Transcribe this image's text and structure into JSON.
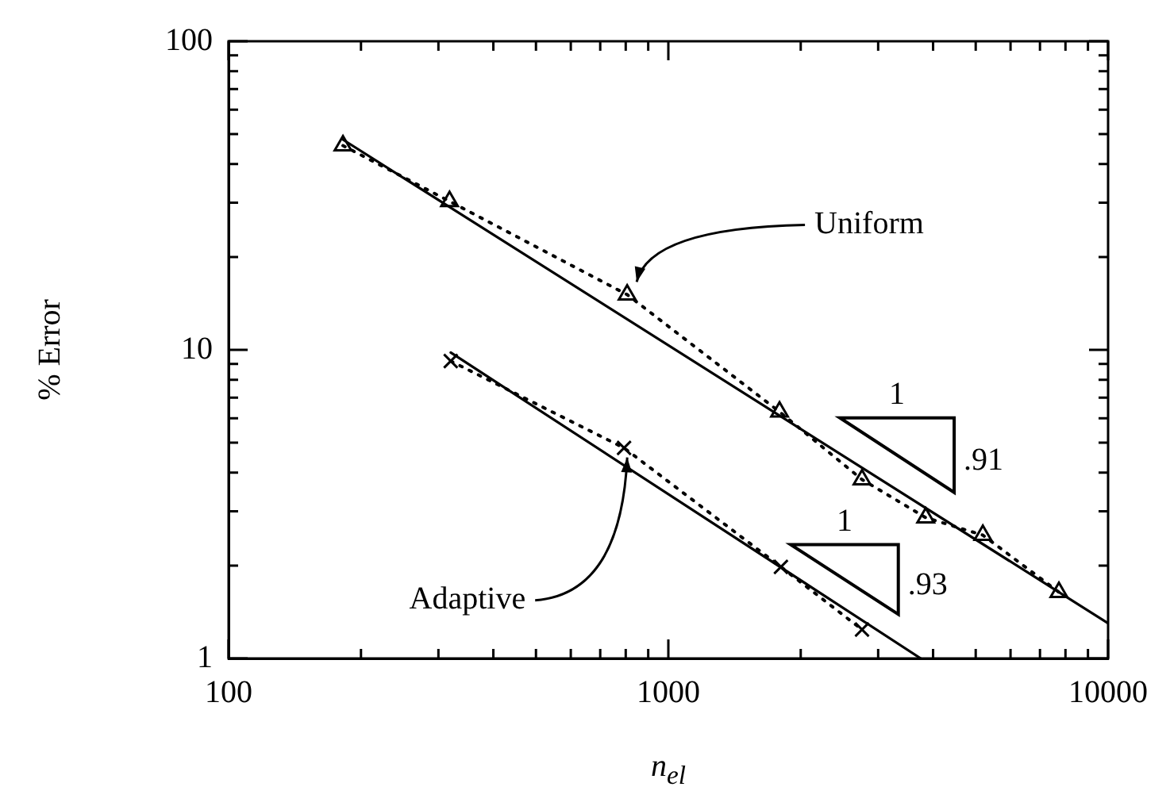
{
  "chart_data": {
    "type": "line",
    "xlabel": "n$_{el}$",
    "ylabel": "% Error",
    "log": "xy",
    "grid": false,
    "legend": false,
    "xlim": [
      100,
      10000
    ],
    "ylim": [
      1,
      100
    ],
    "xticks": [
      100,
      {
        "value": 200,
        "label": null
      },
      {
        "value": 300,
        "label": null
      },
      {
        "value": 400,
        "label": null
      },
      {
        "value": 500,
        "label": null
      },
      {
        "value": 600,
        "label": null
      },
      {
        "value": 700,
        "label": null
      },
      {
        "value": 800,
        "label": null
      },
      {
        "value": 900,
        "label": null
      },
      1000,
      {
        "value": 2000,
        "label": null
      },
      {
        "value": 3000,
        "label": null
      },
      {
        "value": 4000,
        "label": null
      },
      {
        "value": 5000,
        "label": null
      },
      {
        "value": 6000,
        "label": null
      },
      {
        "value": 7000,
        "label": null
      },
      {
        "value": 8000,
        "label": null
      },
      {
        "value": 9000,
        "label": null
      },
      10000
    ],
    "yticks": [
      1,
      {
        "value": 2,
        "label": null
      },
      {
        "value": 3,
        "label": null
      },
      {
        "value": 4,
        "label": null
      },
      {
        "value": 5,
        "label": null
      },
      {
        "value": 6,
        "label": null
      },
      {
        "value": 7,
        "label": null
      },
      {
        "value": 8,
        "label": null
      },
      {
        "value": 9,
        "label": null
      },
      10,
      {
        "value": 20,
        "label": null
      },
      {
        "value": 30,
        "label": null
      },
      {
        "value": 40,
        "label": null
      },
      {
        "value": 50,
        "label": null
      },
      {
        "value": 60,
        "label": null
      },
      {
        "value": 70,
        "label": null
      },
      {
        "value": 80,
        "label": null
      },
      {
        "value": 90,
        "label": null
      },
      100
    ],
    "series": [
      {
        "name": "Uniform",
        "color": "#000000",
        "marker": "triangle",
        "line_style": "dotted",
        "x": [
          182,
          318,
          806,
          1790,
          2757,
          3848,
          5190,
          7730
        ],
        "values": [
          45.9,
          30.3,
          15.1,
          6.3,
          3.8,
          2.86,
          2.51,
          1.64
        ]
      },
      {
        "name": "Adaptive",
        "color": "#000000",
        "marker": "cross",
        "line_style": "dotted",
        "x": [
          320,
          793,
          1803,
          2757
        ],
        "values": [
          9.2,
          4.81,
          1.98,
          1.24
        ]
      },
      {
        "color": "#000000",
        "marker": "none",
        "line_style": "solid",
        "x": [
          182,
          10000
        ],
        "values": [
          48,
          1.3
        ]
      },
      {
        "color": "#000000",
        "marker": "none",
        "line_style": "solid",
        "x": [
          320,
          3750
        ],
        "values": [
          9.8,
          1
        ]
      }
    ],
    "annotations": [
      "1",
      ".91",
      "1",
      ".93"
    ]
  }
}
